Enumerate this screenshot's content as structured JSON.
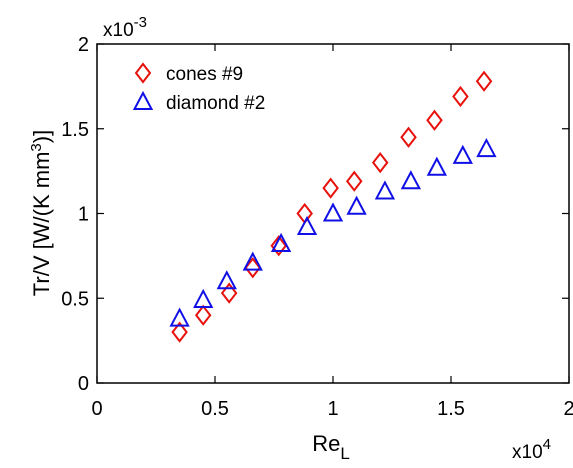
{
  "chart_data": {
    "type": "scatter",
    "x_multiplier": "x10",
    "x_multiplier_exp": "4",
    "y_multiplier": "x10",
    "y_multiplier_exp": "-3",
    "xlabel": "Re",
    "xlabel_sub": "L",
    "ylabel": "Tr/V [W/(K mm",
    "ylabel_sup": "3",
    "ylabel_end": ")]",
    "xlim": [
      0,
      2
    ],
    "ylim": [
      0,
      2
    ],
    "xticks": [
      0,
      0.5,
      1,
      1.5,
      2
    ],
    "xtick_labels": [
      "0",
      "0.5",
      "1",
      "1.5",
      "2"
    ],
    "yticks": [
      0,
      0.5,
      1,
      1.5,
      2
    ],
    "ytick_labels": [
      "0",
      "0.5",
      "1",
      "1.5",
      "2"
    ],
    "grid": false,
    "legend_position": "top-left",
    "series": [
      {
        "name": "cones #9",
        "marker": "diamond",
        "color": "#e8120c",
        "x": [
          0.35,
          0.45,
          0.56,
          0.66,
          0.77,
          0.88,
          0.99,
          1.09,
          1.2,
          1.32,
          1.43,
          1.54,
          1.64
        ],
        "y": [
          0.3,
          0.4,
          0.53,
          0.68,
          0.81,
          1.0,
          1.15,
          1.19,
          1.3,
          1.45,
          1.55,
          1.69,
          1.78
        ]
      },
      {
        "name": "diamond #2",
        "marker": "triangle",
        "color": "#1010e6",
        "x": [
          0.35,
          0.45,
          0.55,
          0.66,
          0.78,
          0.89,
          1.0,
          1.1,
          1.22,
          1.33,
          1.44,
          1.55,
          1.65
        ],
        "y": [
          0.38,
          0.49,
          0.6,
          0.71,
          0.82,
          0.92,
          1.0,
          1.04,
          1.13,
          1.19,
          1.27,
          1.34,
          1.38
        ]
      }
    ]
  }
}
